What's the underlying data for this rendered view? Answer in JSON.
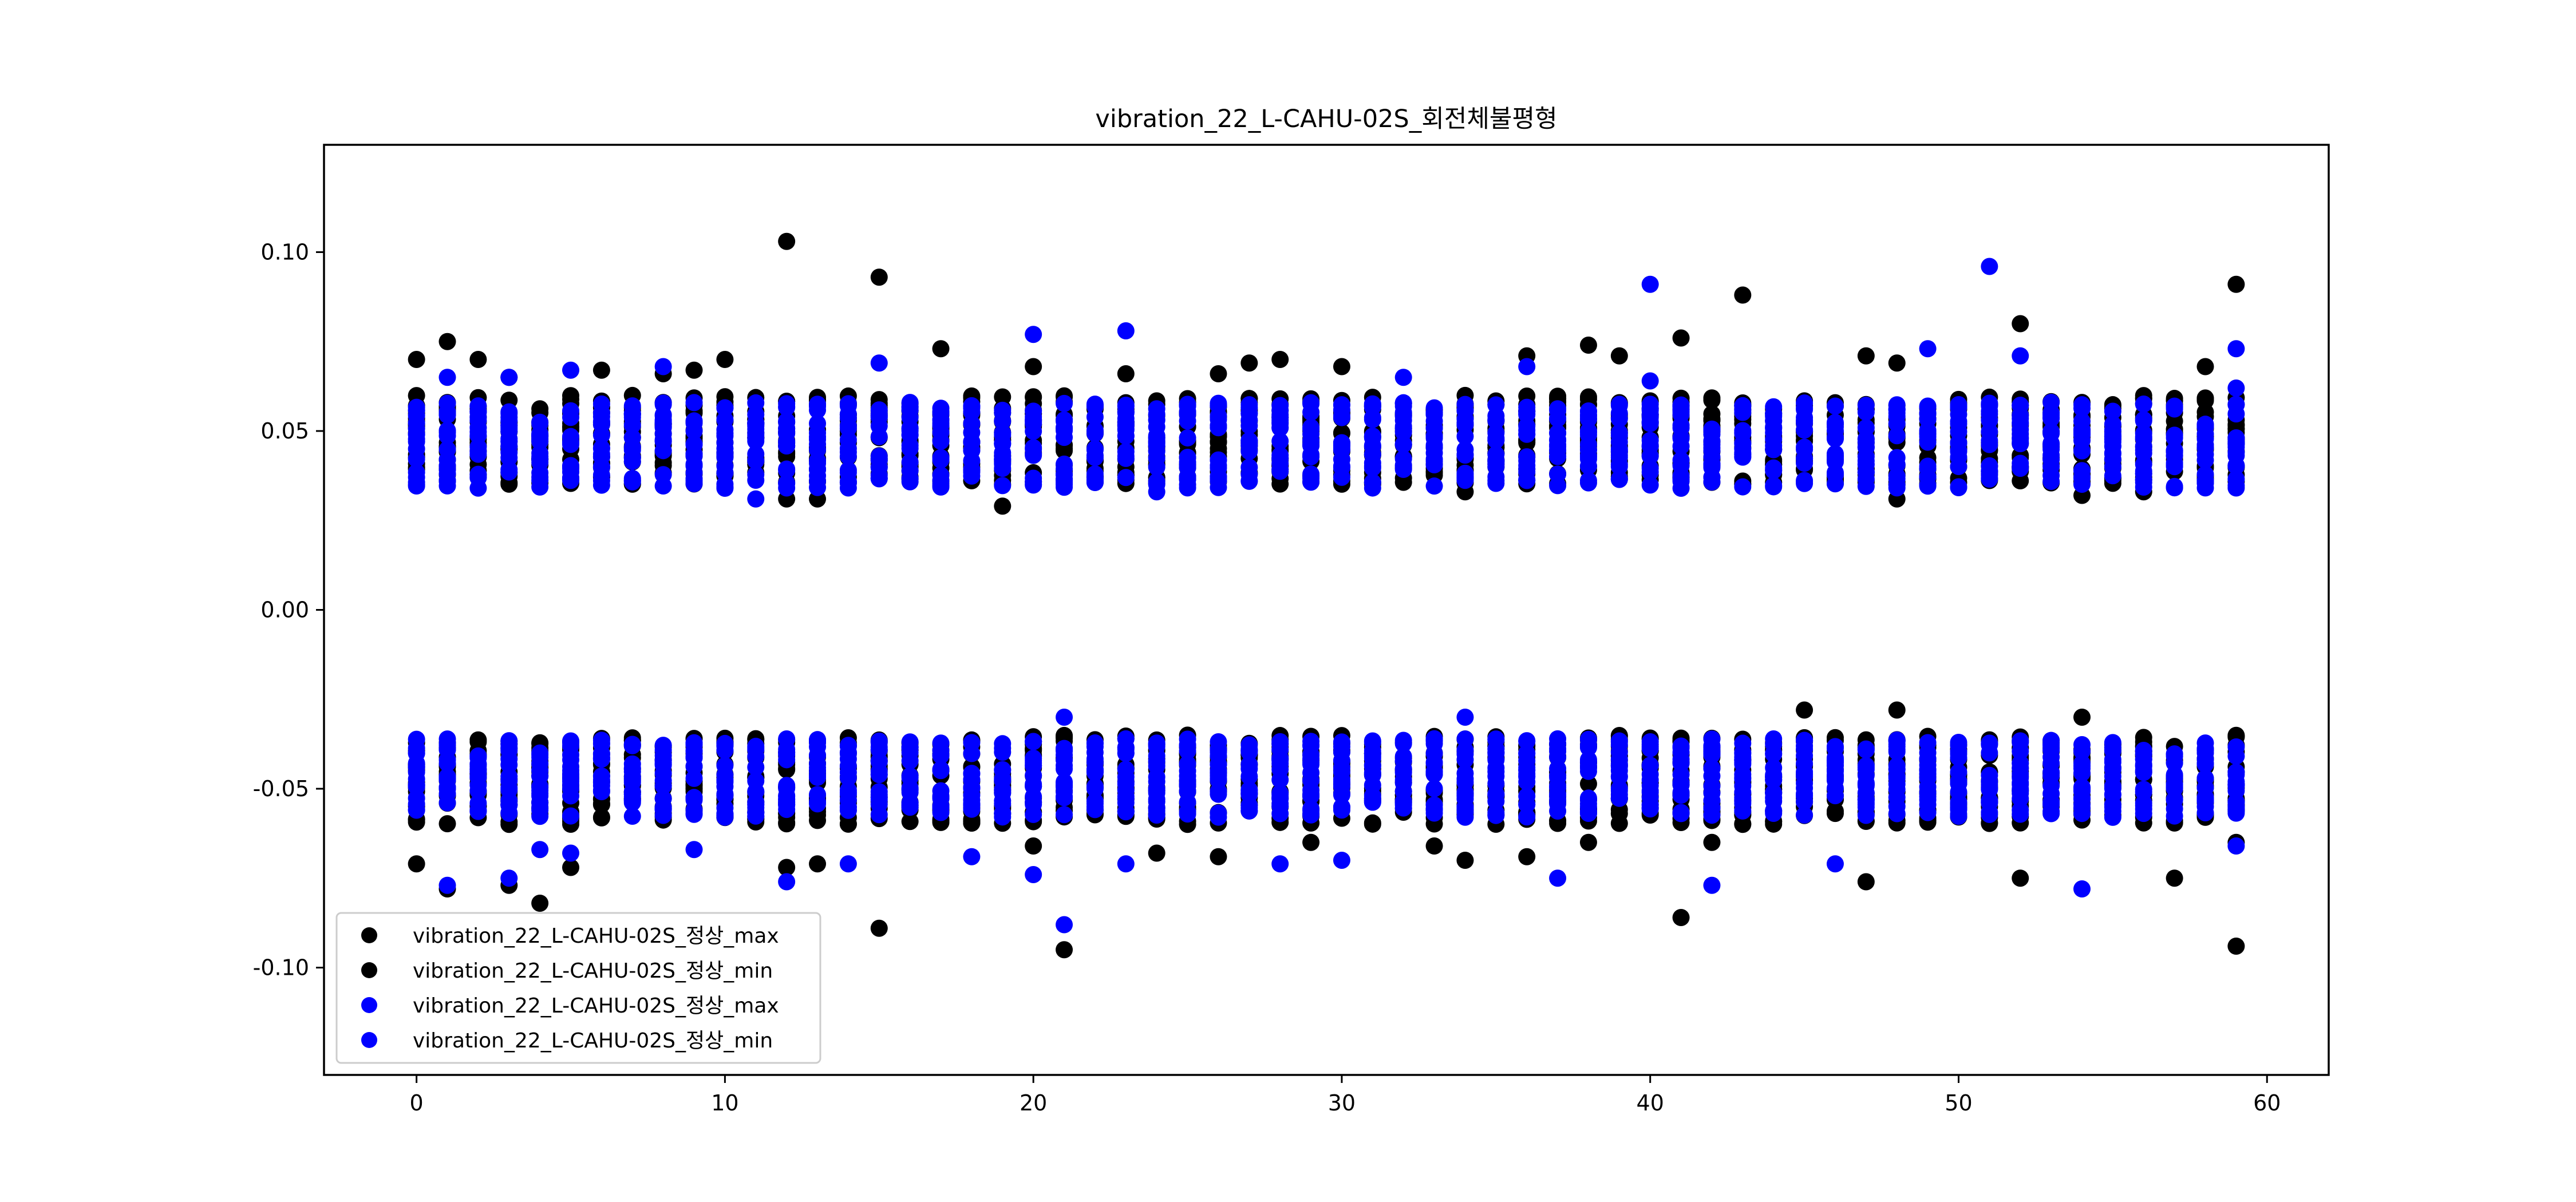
{
  "chart_data": {
    "type": "scatter",
    "title": "vibration_22_L-CAHU-02S_회전체불평형",
    "xlabel": "",
    "ylabel": "",
    "xlim": [
      -3,
      62
    ],
    "ylim": [
      -0.13,
      0.13
    ],
    "x_ticks": [
      0,
      10,
      20,
      30,
      40,
      50,
      60
    ],
    "x_tick_labels": [
      "0",
      "10",
      "20",
      "30",
      "40",
      "50",
      "60"
    ],
    "y_ticks": [
      -0.1,
      -0.05,
      0.0,
      0.05,
      0.1
    ],
    "y_tick_labels": [
      "-0.10",
      "-0.05",
      "0.00",
      "0.05",
      "0.10"
    ],
    "grid": false,
    "legend_position": "lower-left",
    "x_range": [
      0,
      59
    ],
    "series": [
      {
        "name": "vibration_22_L-CAHU-02S_정상_max",
        "color": "#000000",
        "typical_range": [
          0.035,
          0.06
        ],
        "outliers": [
          [
            0,
            0.07
          ],
          [
            1,
            0.075
          ],
          [
            2,
            0.07
          ],
          [
            3,
            0.065
          ],
          [
            6,
            0.067
          ],
          [
            8,
            0.066
          ],
          [
            9,
            0.067
          ],
          [
            10,
            0.07
          ],
          [
            12,
            0.103
          ],
          [
            12,
            0.031
          ],
          [
            13,
            0.031
          ],
          [
            15,
            0.093
          ],
          [
            17,
            0.073
          ],
          [
            19,
            0.029
          ],
          [
            20,
            0.068
          ],
          [
            23,
            0.066
          ],
          [
            26,
            0.066
          ],
          [
            27,
            0.069
          ],
          [
            28,
            0.07
          ],
          [
            30,
            0.068
          ],
          [
            34,
            0.033
          ],
          [
            36,
            0.071
          ],
          [
            38,
            0.074
          ],
          [
            39,
            0.071
          ],
          [
            41,
            0.076
          ],
          [
            43,
            0.088
          ],
          [
            47,
            0.071
          ],
          [
            48,
            0.069
          ],
          [
            48,
            0.031
          ],
          [
            52,
            0.08
          ],
          [
            54,
            0.032
          ],
          [
            56,
            0.033
          ],
          [
            58,
            0.068
          ],
          [
            59,
            0.091
          ]
        ]
      },
      {
        "name": "vibration_22_L-CAHU-02S_정상_min",
        "color": "#000000",
        "typical_range": [
          -0.06,
          -0.035
        ],
        "outliers": [
          [
            0,
            -0.071
          ],
          [
            1,
            -0.078
          ],
          [
            3,
            -0.077
          ],
          [
            4,
            -0.082
          ],
          [
            5,
            -0.072
          ],
          [
            12,
            -0.072
          ],
          [
            13,
            -0.071
          ],
          [
            15,
            -0.089
          ],
          [
            20,
            -0.066
          ],
          [
            21,
            -0.095
          ],
          [
            24,
            -0.068
          ],
          [
            26,
            -0.069
          ],
          [
            29,
            -0.065
          ],
          [
            33,
            -0.066
          ],
          [
            34,
            -0.07
          ],
          [
            36,
            -0.069
          ],
          [
            38,
            -0.065
          ],
          [
            41,
            -0.086
          ],
          [
            42,
            -0.065
          ],
          [
            45,
            -0.028
          ],
          [
            47,
            -0.076
          ],
          [
            48,
            -0.028
          ],
          [
            52,
            -0.075
          ],
          [
            54,
            -0.03
          ],
          [
            57,
            -0.075
          ],
          [
            59,
            -0.094
          ],
          [
            59,
            -0.065
          ]
        ]
      },
      {
        "name": "vibration_22_L-CAHU-02S_정상_max",
        "color": "#0000ff",
        "typical_range": [
          0.034,
          0.058
        ],
        "outliers": [
          [
            1,
            0.065
          ],
          [
            3,
            0.065
          ],
          [
            5,
            0.067
          ],
          [
            8,
            0.068
          ],
          [
            11,
            0.031
          ],
          [
            15,
            0.069
          ],
          [
            20,
            0.077
          ],
          [
            23,
            0.078
          ],
          [
            24,
            0.033
          ],
          [
            32,
            0.065
          ],
          [
            36,
            0.068
          ],
          [
            40,
            0.091
          ],
          [
            40,
            0.064
          ],
          [
            41,
            0.034
          ],
          [
            49,
            0.073
          ],
          [
            51,
            0.096
          ],
          [
            52,
            0.071
          ],
          [
            59,
            0.073
          ],
          [
            59,
            0.062
          ]
        ]
      },
      {
        "name": "vibration_22_L-CAHU-02S_정상_min",
        "color": "#0000ff",
        "typical_range": [
          -0.058,
          -0.036
        ],
        "outliers": [
          [
            1,
            -0.077
          ],
          [
            3,
            -0.075
          ],
          [
            4,
            -0.067
          ],
          [
            5,
            -0.068
          ],
          [
            9,
            -0.067
          ],
          [
            12,
            -0.076
          ],
          [
            14,
            -0.071
          ],
          [
            18,
            -0.069
          ],
          [
            20,
            -0.074
          ],
          [
            21,
            -0.088
          ],
          [
            21,
            -0.03
          ],
          [
            23,
            -0.071
          ],
          [
            28,
            -0.071
          ],
          [
            30,
            -0.07
          ],
          [
            34,
            -0.03
          ],
          [
            37,
            -0.075
          ],
          [
            42,
            -0.077
          ],
          [
            46,
            -0.071
          ],
          [
            54,
            -0.078
          ],
          [
            59,
            -0.066
          ]
        ]
      }
    ]
  }
}
